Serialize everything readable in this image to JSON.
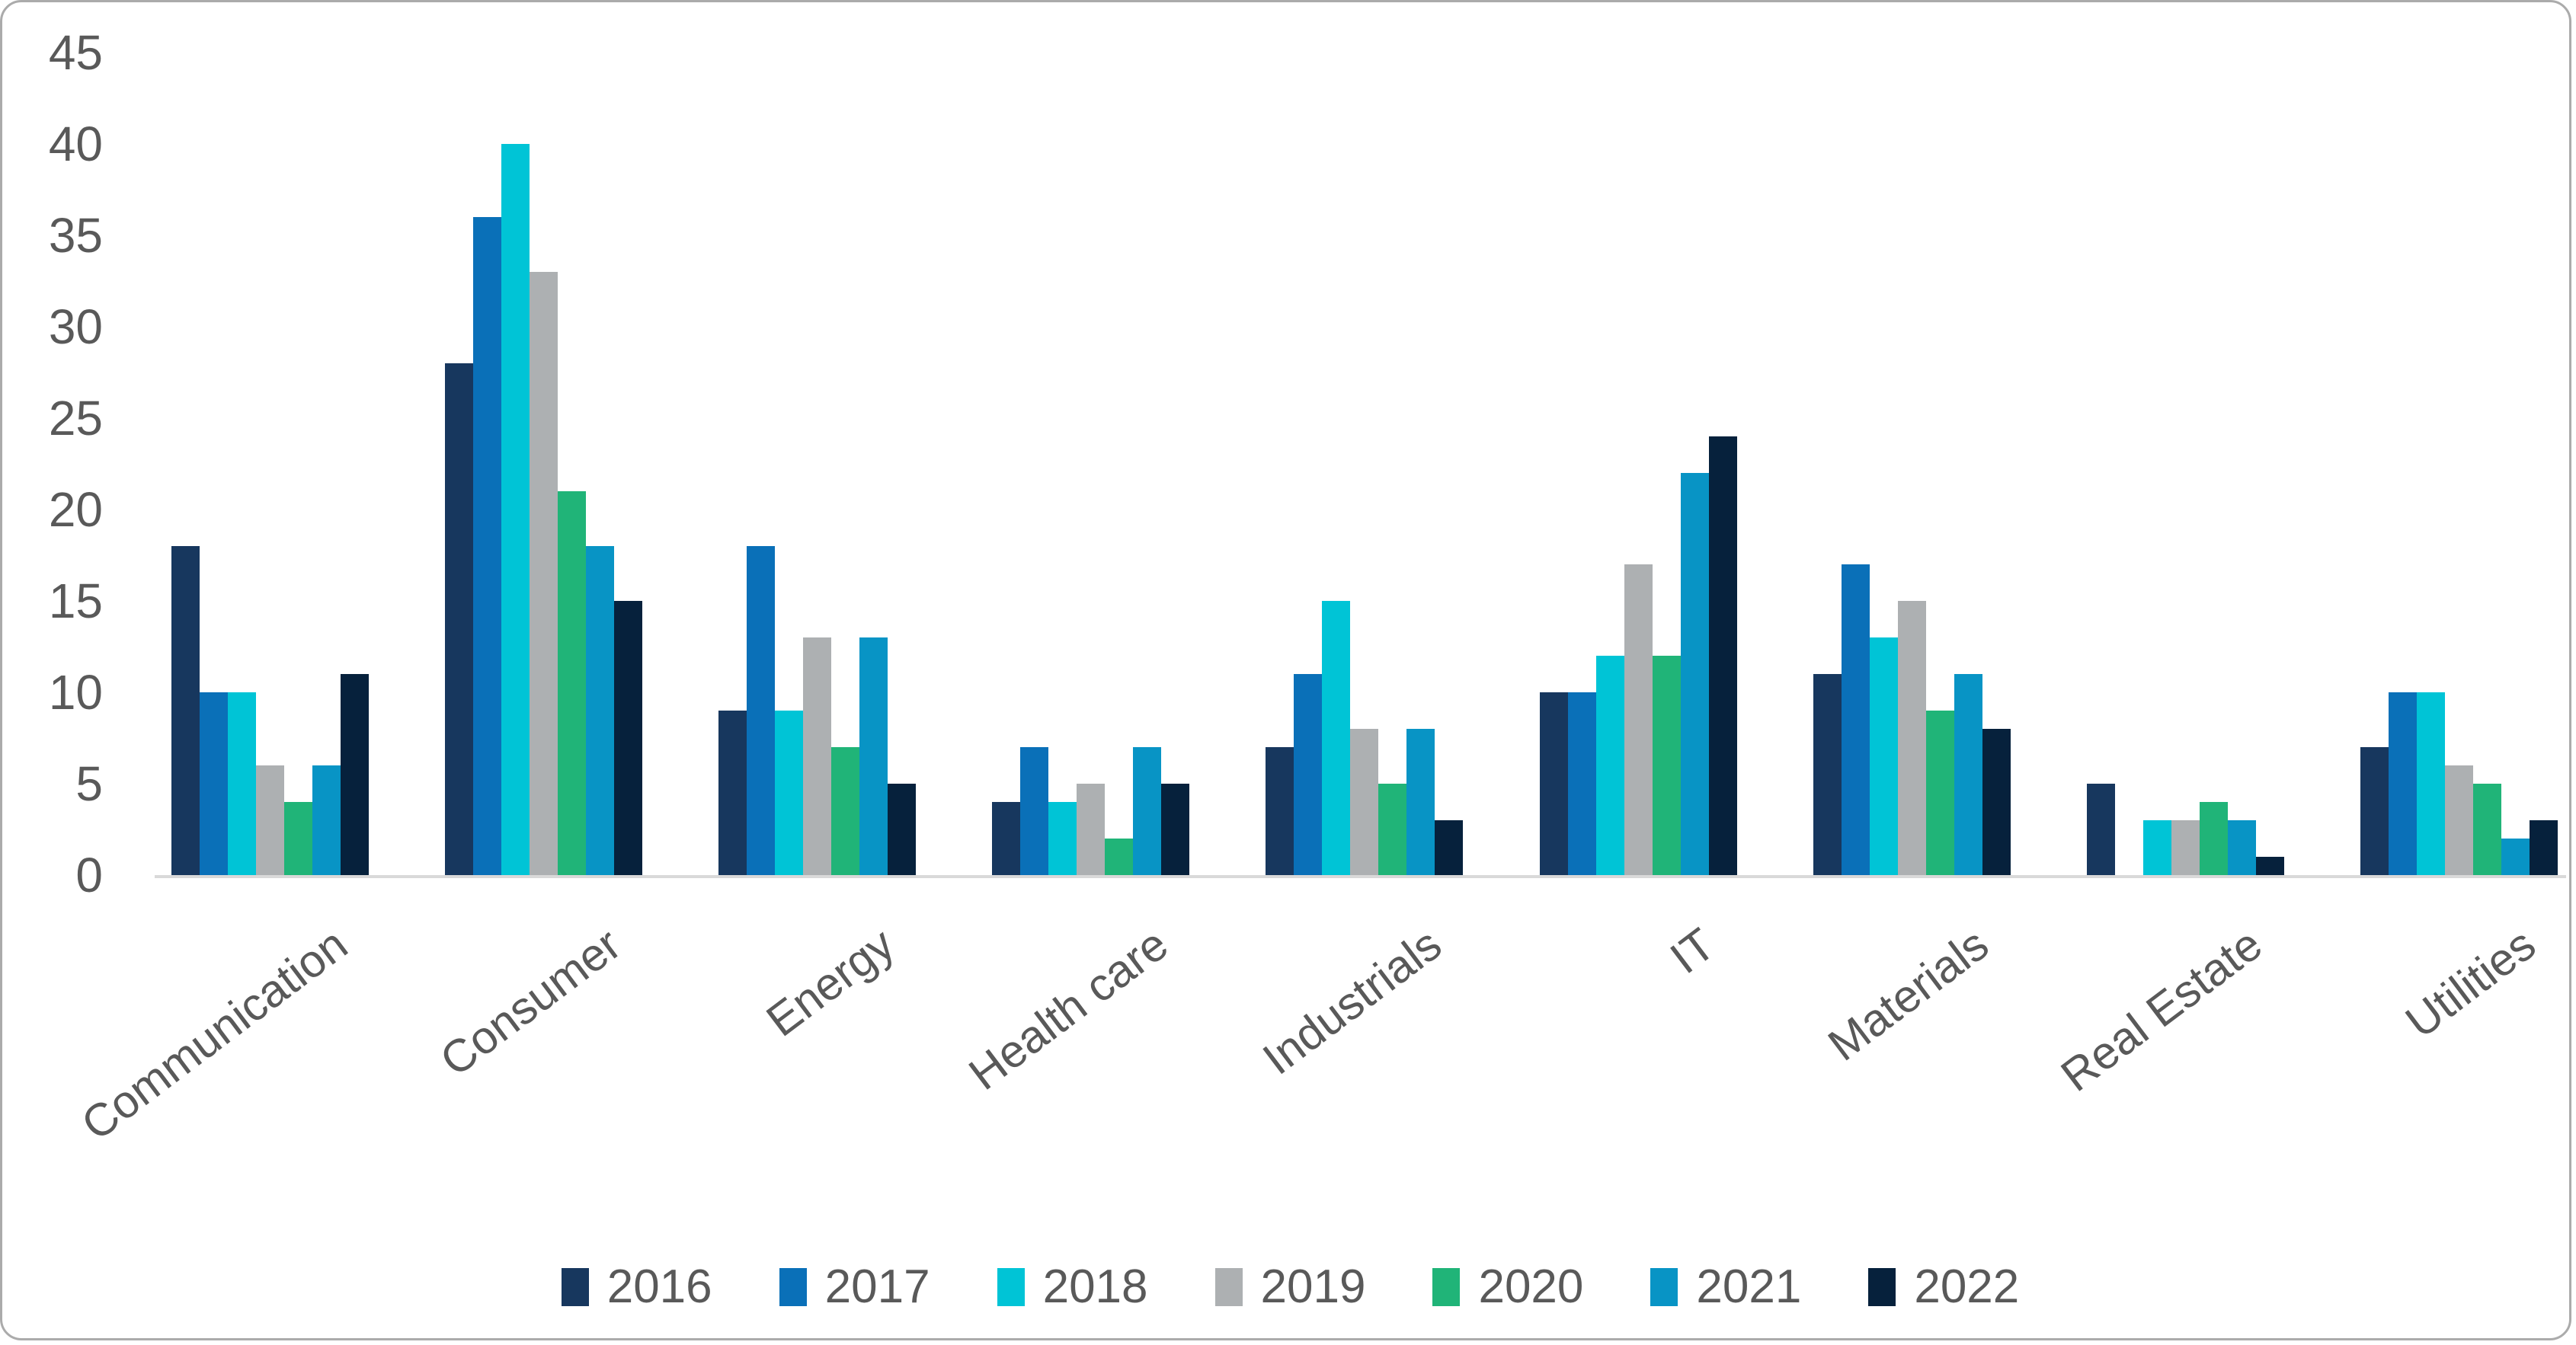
{
  "chart_data": {
    "type": "bar",
    "title": "",
    "xlabel": "",
    "ylabel": "",
    "categories": [
      "Communication",
      "Consumer",
      "Energy",
      "Health care",
      "Industrials",
      "IT",
      "Materials",
      "Real Estate",
      "Utilities"
    ],
    "series": [
      {
        "name": "2016",
        "color": "#17375E",
        "values": [
          18,
          28,
          9,
          4,
          7,
          10,
          11,
          5,
          7
        ]
      },
      {
        "name": "2017",
        "color": "#0A70B8",
        "values": [
          10,
          36,
          18,
          7,
          11,
          10,
          17,
          0,
          10
        ]
      },
      {
        "name": "2018",
        "color": "#00C4D6",
        "values": [
          10,
          40,
          9,
          4,
          15,
          12,
          13,
          3,
          10
        ]
      },
      {
        "name": "2019",
        "color": "#ADB0B2",
        "values": [
          6,
          33,
          13,
          5,
          8,
          17,
          15,
          3,
          6
        ]
      },
      {
        "name": "2020",
        "color": "#20B478",
        "values": [
          4,
          21,
          7,
          2,
          5,
          12,
          9,
          4,
          5
        ]
      },
      {
        "name": "2021",
        "color": "#0894C5",
        "values": [
          6,
          18,
          13,
          7,
          8,
          22,
          11,
          3,
          2
        ]
      },
      {
        "name": "2022",
        "color": "#06213C",
        "values": [
          11,
          15,
          5,
          5,
          3,
          24,
          8,
          1,
          3
        ]
      }
    ],
    "ylim": [
      0,
      45
    ],
    "yticks": [
      0,
      5,
      10,
      15,
      20,
      25,
      30,
      35,
      40,
      45
    ],
    "grid": false,
    "legend_position": "bottom",
    "legend_entries": [
      "2016",
      "2017",
      "2018",
      "2019",
      "2020",
      "2021",
      "2022"
    ],
    "axis_text_color": "#595959",
    "axis_line_color": "#D9D9D9",
    "background_color": "#FFFFFF"
  }
}
